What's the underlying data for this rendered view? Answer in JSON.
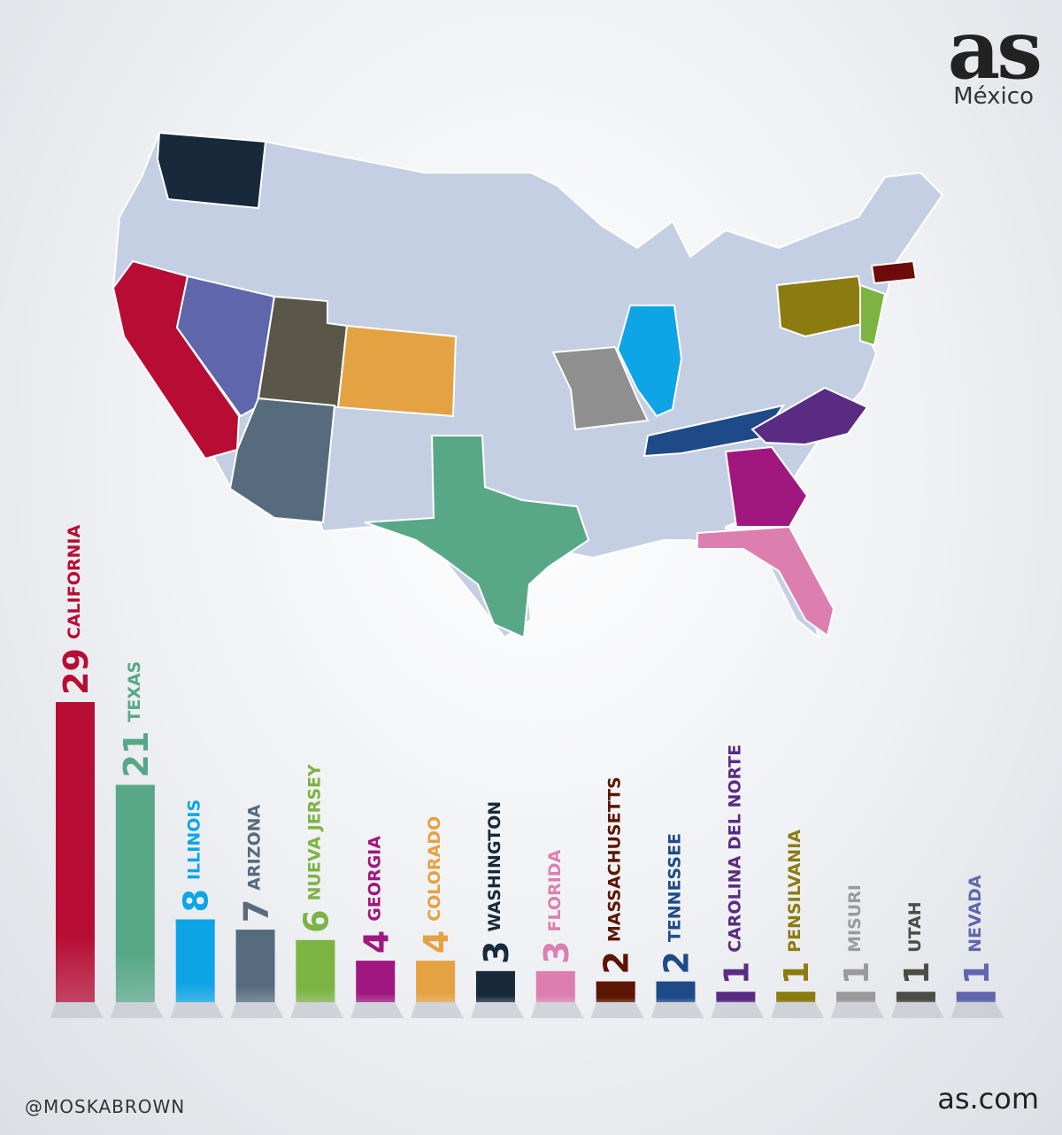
{
  "brand": {
    "logo_mark": "as",
    "logo_sub": "México",
    "handle": "@MOSKABROWN",
    "site": "as.com"
  },
  "chart_data": {
    "type": "bar",
    "categories": [
      "CALIFORNIA",
      "TEXAS",
      "ILLINOIS",
      "ARIZONA",
      "NUEVA JERSEY",
      "GEORGIA",
      "COLORADO",
      "WASHINGTON",
      "FLORIDA",
      "MASSACHUSETTS",
      "TENNESSEE",
      "CAROLINA DEL NORTE",
      "PENSILVANIA",
      "MISURI",
      "UTAH",
      "NEVADA"
    ],
    "values": [
      29,
      21,
      8,
      7,
      6,
      4,
      4,
      3,
      3,
      2,
      2,
      1,
      1,
      1,
      1,
      1
    ],
    "colors": [
      "#b70d35",
      "#58a888",
      "#0ea5e6",
      "#566b7e",
      "#7cb342",
      "#a0177f",
      "#e5a243",
      "#17293a",
      "#dc7fb0",
      "#5c1500",
      "#1f4a88",
      "#5a2b82",
      "#8c7b10",
      "#9a9a9a",
      "#4d4d47",
      "#6066ab"
    ],
    "ylim": [
      0,
      29
    ],
    "grid": false,
    "legend": "none"
  }
}
